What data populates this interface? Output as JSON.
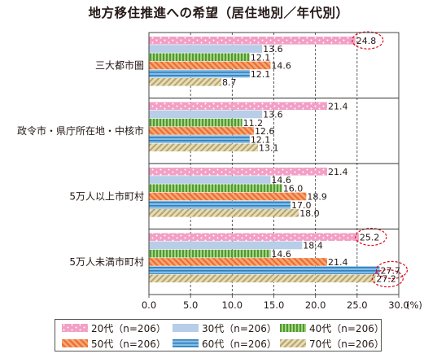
{
  "chart_data": {
    "type": "bar",
    "orientation": "horizontal",
    "title": "地方移住推進への希望（居住地別／年代別）",
    "categories": [
      "三大都市圏",
      "政令市・県庁所在地・中核市",
      "5万人以上市町村",
      "5万人未満市町村"
    ],
    "series": [
      {
        "name": "20代（n=206）",
        "values": [
          24.8,
          21.4,
          21.4,
          25.2
        ]
      },
      {
        "name": "30代（n=206）",
        "values": [
          13.6,
          13.6,
          14.6,
          18.4
        ]
      },
      {
        "name": "40代（n=206）",
        "values": [
          12.1,
          11.2,
          16.0,
          14.6
        ]
      },
      {
        "name": "50代（n=206）",
        "values": [
          14.6,
          12.6,
          18.9,
          21.4
        ]
      },
      {
        "name": "60代（n=206）",
        "values": [
          12.1,
          12.1,
          17.0,
          27.7
        ]
      },
      {
        "name": "70代（n=206）",
        "values": [
          8.7,
          13.1,
          18.0,
          27.2
        ]
      }
    ],
    "value_labels": [
      [
        "24.8",
        "21.4",
        "21.4",
        "25.2"
      ],
      [
        "13.6",
        "13.6",
        "14.6",
        "18.4"
      ],
      [
        "12.1",
        "11.2",
        "16.0",
        "14.6"
      ],
      [
        "14.6",
        "12.6",
        "18.9",
        "21.4"
      ],
      [
        "12.1",
        "12.1",
        "17.0",
        "27.7"
      ],
      [
        "8.7",
        "13.1",
        "18.0",
        "27.2"
      ]
    ],
    "xlim": [
      0,
      30
    ],
    "xticks": [
      "0.0",
      "5.0",
      "10.0",
      "15.0",
      "20.0",
      "25.0",
      "30.0"
    ],
    "x_unit": "(%)",
    "gridlines": "dashed",
    "legend_position": "bottom",
    "highlighted": [
      [
        0,
        0
      ],
      [
        0,
        3
      ],
      [
        4,
        3
      ],
      [
        5,
        3
      ]
    ],
    "colors": {
      "20代": "#f29fc5",
      "30代": "#b7cde8",
      "40代": "#6fb24a",
      "50代": "#f2884e",
      "60代": "#3d8fc7",
      "70代": "#d2c390",
      "highlight": "#e60012"
    }
  }
}
